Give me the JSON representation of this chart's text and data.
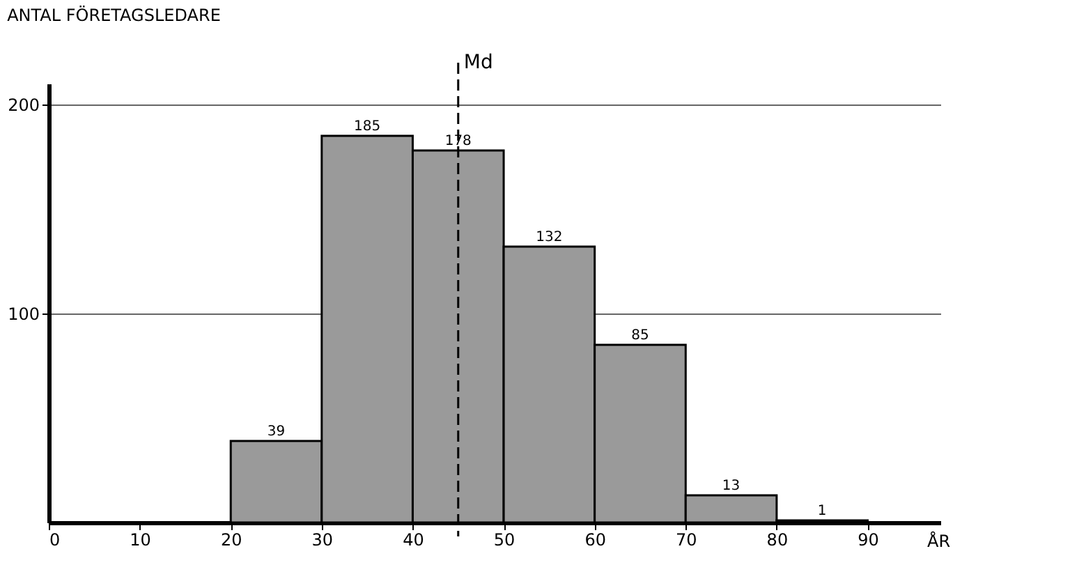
{
  "chart_data": {
    "type": "histogram",
    "ylabel": "ANTAL FÖRETAGSLEDARE",
    "xlabel": "ÅR",
    "bins": [
      20,
      30,
      40,
      50,
      60,
      70,
      80,
      90
    ],
    "values": [
      39,
      185,
      178,
      132,
      85,
      13,
      1
    ],
    "color": "#9a9a9a",
    "data_labels": true,
    "xlim": [
      0,
      98
    ],
    "xticks": [
      0,
      10,
      20,
      30,
      40,
      50,
      60,
      70,
      80,
      90
    ],
    "ylim": [
      0,
      210
    ],
    "yticks": [
      100,
      200
    ],
    "grid": "y",
    "ref_lines": [
      {
        "axis": "x",
        "value": 45,
        "label": "Md",
        "line_style": "dashed"
      }
    ]
  }
}
